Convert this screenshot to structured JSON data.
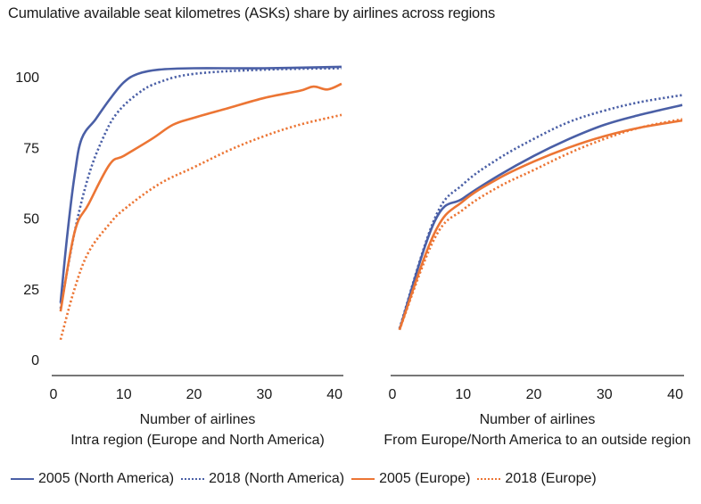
{
  "title": "Cumulative available seat kilometres (ASKs) share by airlines across regions",
  "colors": {
    "north_america": "#4a5fa6",
    "europe": "#ec7534",
    "axis": "#777777"
  },
  "legend": [
    {
      "label": "2005 (North America)",
      "color": "#4a5fa6",
      "style": "solid"
    },
    {
      "label": "2018 (North America)",
      "color": "#4a5fa6",
      "style": "dotted"
    },
    {
      "label": "2005 (Europe)",
      "color": "#ec7534",
      "style": "solid"
    },
    {
      "label": "2018 (Europe)",
      "color": "#ec7534",
      "style": "dotted"
    }
  ],
  "chart_data": [
    {
      "type": "line",
      "title": "",
      "xlabel": "Number of airlines",
      "subtitle": "Intra region (Europe and  North America)",
      "ylabel": "",
      "xlim": [
        0,
        41
      ],
      "ylim": [
        0,
        105
      ],
      "xticks": [
        "0",
        "10",
        "20",
        "30",
        "40"
      ],
      "yticks": [
        "0",
        "25",
        "50",
        "75",
        "100"
      ],
      "grid": false,
      "series": [
        {
          "name": "2005 (North America)",
          "color": "#4a5fa6",
          "style": "solid",
          "x": [
            1,
            2,
            3,
            4,
            6,
            8,
            10,
            12,
            15,
            20,
            30,
            41
          ],
          "y": [
            20,
            45,
            65,
            78,
            85,
            92,
            98,
            101,
            102.5,
            103,
            103,
            103.5
          ]
        },
        {
          "name": "2018 (North America)",
          "color": "#4a5fa6",
          "style": "dotted",
          "x": [
            1,
            3,
            5,
            7,
            9,
            12,
            15,
            20,
            30,
            41
          ],
          "y": [
            18,
            45,
            65,
            78,
            87,
            94,
            98,
            101,
            102.5,
            103
          ]
        },
        {
          "name": "2005 (Europe)",
          "color": "#ec7534",
          "style": "solid",
          "x": [
            1,
            3,
            5,
            8,
            10,
            14,
            17,
            20,
            25,
            30,
            35,
            37,
            39,
            41
          ],
          "y": [
            17,
            45,
            55,
            69,
            72,
            78,
            83,
            85.5,
            89,
            92.5,
            95,
            96.5,
            95.5,
            97.5
          ]
        },
        {
          "name": "2018 (Europe)",
          "color": "#ec7534",
          "style": "dotted",
          "x": [
            1,
            3,
            5,
            8,
            10,
            15,
            20,
            25,
            30,
            35,
            41
          ],
          "y": [
            7,
            25,
            38,
            48,
            53,
            62,
            68,
            74,
            79,
            83,
            86.5
          ]
        }
      ]
    },
    {
      "type": "line",
      "title": "",
      "xlabel": "Number of airlines",
      "subtitle": "From Europe/North America to an outside region",
      "ylabel": "",
      "xlim": [
        0,
        41
      ],
      "ylim": [
        0,
        105
      ],
      "xticks": [
        "0",
        "10",
        "20",
        "30",
        "40"
      ],
      "yticks": [],
      "grid": false,
      "series": [
        {
          "name": "2005 (North America)",
          "color": "#4a5fa6",
          "style": "solid",
          "x": [
            1,
            6,
            10,
            15,
            20,
            25,
            30,
            35,
            41
          ],
          "y": [
            10.5,
            49,
            57,
            65,
            72,
            78,
            83,
            86.5,
            90
          ]
        },
        {
          "name": "2018 (North America)",
          "color": "#4a5fa6",
          "style": "dotted",
          "x": [
            1,
            6,
            10,
            15,
            20,
            25,
            30,
            35,
            41
          ],
          "y": [
            11,
            50,
            62,
            71,
            78,
            84,
            88,
            91,
            93.5
          ]
        },
        {
          "name": "2005 (Europe)",
          "color": "#ec7534",
          "style": "solid",
          "x": [
            1,
            6,
            10,
            15,
            20,
            25,
            30,
            35,
            41
          ],
          "y": [
            10.5,
            45,
            56,
            64,
            70,
            75,
            79,
            82,
            84.5
          ]
        },
        {
          "name": "2018 (Europe)",
          "color": "#ec7534",
          "style": "dotted",
          "x": [
            1,
            6,
            10,
            15,
            20,
            25,
            30,
            35,
            41
          ],
          "y": [
            10.5,
            43,
            53,
            61,
            67,
            73,
            78,
            82,
            85
          ]
        }
      ]
    }
  ]
}
